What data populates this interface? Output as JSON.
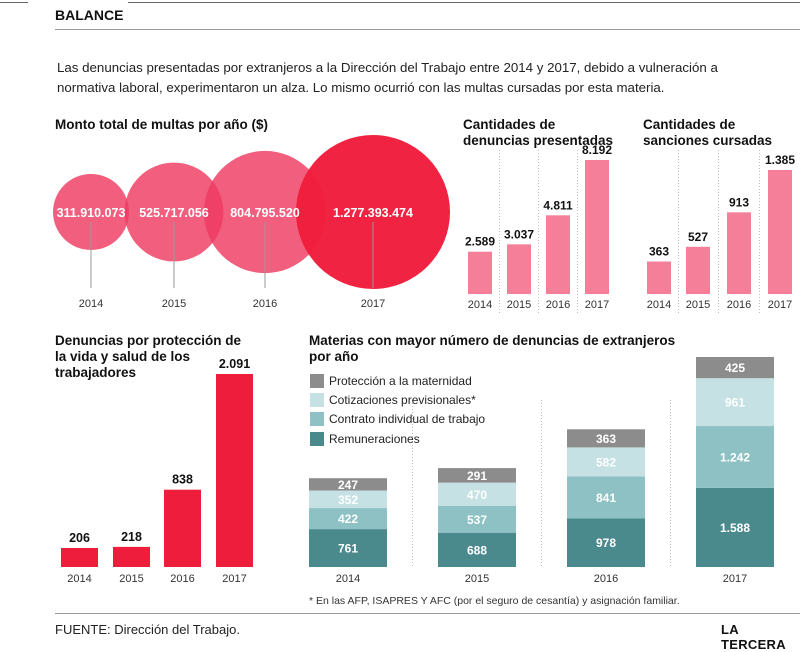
{
  "header": {
    "section_label": "BALANCE"
  },
  "intro_text": "Las denuncias presentadas  por extranjeros a la Dirección del Trabajo entre 2014 y 2017,  debido a vulneración a normativa laboral, experimentaron un alza. Lo mismo ocurrió con las multas cursadas por esta materia.",
  "colors": {
    "pink": "#f57f99",
    "red": "#ef1d3c",
    "bubble": "#ee3a62",
    "stack_proteccion": "#8c8c8c",
    "stack_cotizaciones": "#c5e1e4",
    "stack_contrato": "#8ec1c3",
    "stack_remuneraciones": "#4a8a8c"
  },
  "chart_data": [
    {
      "id": "multas",
      "type": "scatter",
      "title": "Monto total de multas por año ($)",
      "categories": [
        "2014",
        "2015",
        "2016",
        "2017"
      ],
      "values": [
        311910073,
        525717056,
        804795520,
        1277393474
      ],
      "value_labels": [
        "311.910.073",
        "525.717.056",
        "804.795.520",
        "1.277.393.474"
      ]
    },
    {
      "id": "denuncias",
      "type": "bar",
      "title": "Cantidades de denuncias presentadas",
      "categories": [
        "2014",
        "2015",
        "2016",
        "2017"
      ],
      "values": [
        2589,
        3037,
        4811,
        8192
      ],
      "value_labels": [
        "2.589",
        "3.037",
        "4.811",
        "8.192"
      ]
    },
    {
      "id": "sanciones",
      "type": "bar",
      "title": "Cantidades de sanciones cursadas",
      "categories": [
        "2014",
        "2015",
        "2016",
        "2017"
      ],
      "values": [
        363,
        527,
        913,
        1385
      ],
      "value_labels": [
        "363",
        "527",
        "913",
        "1.385"
      ]
    },
    {
      "id": "proteccion",
      "type": "bar",
      "title": "Denuncias por protección de la vida y salud de los trabajadores",
      "categories": [
        "2014",
        "2015",
        "2016",
        "2017"
      ],
      "values": [
        206,
        218,
        838,
        2091
      ],
      "value_labels": [
        "206",
        "218",
        "838",
        "2.091"
      ]
    },
    {
      "id": "materias",
      "type": "bar",
      "stacked": true,
      "title": "Materias con mayor número de denuncias de extranjeros por año",
      "categories": [
        "2014",
        "2015",
        "2016",
        "2017"
      ],
      "series": [
        {
          "name": "Remuneraciones",
          "values": [
            761,
            688,
            978,
            1588
          ],
          "value_labels": [
            "761",
            "688",
            "978",
            "1.588"
          ]
        },
        {
          "name": "Contrato individual de trabajo",
          "values": [
            422,
            537,
            841,
            1242
          ],
          "value_labels": [
            "422",
            "537",
            "841",
            "1.242"
          ]
        },
        {
          "name": "Cotizaciones previsionales*",
          "values": [
            352,
            470,
            582,
            961
          ],
          "value_labels": [
            "352",
            "470",
            "582",
            "961"
          ]
        },
        {
          "name": "Protección a la maternidad",
          "values": [
            247,
            291,
            363,
            425
          ],
          "value_labels": [
            "247",
            "291",
            "363",
            "425"
          ]
        }
      ],
      "legend_order": [
        "Protección a la maternidad",
        "Cotizaciones previsionales*",
        "Contrato individual de trabajo",
        "Remuneraciones"
      ],
      "footnote": "* En las AFP, ISAPRES Y AFC  (por el seguro de cesantía) y asignación familiar."
    }
  ],
  "footer": {
    "source": "FUENTE: Dirección del Trabajo.",
    "brand": "LA TERCERA"
  }
}
